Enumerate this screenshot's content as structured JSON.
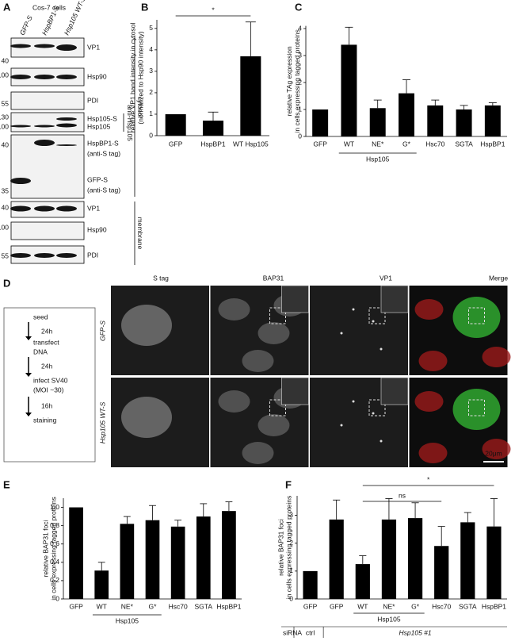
{
  "panel_labels": [
    "A",
    "B",
    "C",
    "D",
    "E",
    "F"
  ],
  "panel_a": {
    "title": "Cos-7 cells",
    "lanes": [
      "GFP-S",
      "HspBP1-S",
      "Hsp105 WT-S"
    ],
    "blots": [
      {
        "markers": [
          40
        ],
        "labels": [
          "VP1"
        ]
      },
      {
        "markers": [
          100
        ],
        "labels": [
          "Hsp90"
        ]
      },
      {
        "markers": [
          55
        ],
        "labels": [
          "PDI"
        ]
      },
      {
        "markers": [
          130,
          100
        ],
        "labels": [
          "Hsp105-S",
          "Hsp105"
        ]
      },
      {
        "markers": [
          40,
          35
        ],
        "labels": [
          "HspBP1-S",
          "(anti-S tag)",
          "GFP-S",
          "(anti-S tag)"
        ]
      },
      {
        "markers": [
          40
        ],
        "labels": [
          "VP1"
        ]
      },
      {
        "markers": [
          100
        ],
        "labels": [
          "Hsp90"
        ]
      },
      {
        "markers": [
          55
        ],
        "labels": [
          "PDI"
        ]
      }
    ],
    "brackets": [
      "anti-Hsp105",
      "cytosol",
      "membrane"
    ]
  },
  "panel_d": {
    "columns": [
      "S tag",
      "BAP31",
      "VP1",
      "Merge"
    ],
    "rows": [
      "GFP-S",
      "Hsp105 WT-S"
    ],
    "scale_bar": "20μm",
    "protocol": [
      "seed",
      "24h",
      "transfect",
      "DNA",
      "24h",
      "infect SV40",
      "(MOI ~30)",
      "16h",
      "staining"
    ]
  },
  "chart_data": [
    {
      "type": "bar",
      "color": "#000000",
      "categories": [
        "GFP",
        "HspBP1",
        "WT Hsp105"
      ],
      "values": [
        1,
        0.7,
        3.7
      ],
      "errors": [
        0,
        0.4,
        1.6
      ],
      "ylim": [
        0,
        5.4
      ],
      "yticks": [
        0,
        1,
        2,
        3,
        4,
        5
      ],
      "ylabel": [
        "relative VP1 band intensity in cytosol",
        "(normalized to Hsp90 intensity)"
      ],
      "annotations": [
        "*"
      ]
    },
    {
      "type": "bar",
      "color": "#000000",
      "categories": [
        "GFP",
        "WT",
        "NE*",
        "G*",
        "Hsc70",
        "SGTA",
        "HspBP1"
      ],
      "values": [
        1,
        3.4,
        1.05,
        1.6,
        1.15,
        1.0,
        1.15
      ],
      "errors": [
        0,
        0.65,
        0.3,
        0.5,
        0.2,
        0.15,
        0.1
      ],
      "ylim": [
        0,
        4.1
      ],
      "yticks": [
        0,
        1,
        2,
        3,
        4
      ],
      "ylabel": [
        "relative TAg expression",
        "in cells expressing tagged proteins"
      ],
      "group_label": "Hsp105"
    },
    {
      "type": "bar",
      "color": "#000000",
      "categories": [
        "GFP",
        "WT",
        "NE*",
        "G*",
        "Hsc70",
        "SGTA",
        "HspBP1"
      ],
      "values": [
        1.0,
        0.31,
        0.82,
        0.86,
        0.79,
        0.9,
        0.96
      ],
      "errors": [
        0,
        0.09,
        0.08,
        0.16,
        0.07,
        0.14,
        0.1
      ],
      "ylim": [
        0,
        1.1
      ],
      "yticks": [
        0,
        0.2,
        0.4,
        0.6,
        0.8,
        {
          "value": 1,
          "label": "1.0"
        }
      ],
      "ylabel": [
        "relative BAP31 foci",
        "in cells expressing tagged proteins"
      ],
      "group_label": "Hsp105"
    },
    {
      "type": "bar",
      "color": "#000000",
      "categories": [
        "GFP",
        "GFP",
        "WT",
        "NE*",
        "G*",
        "Hsc70",
        "SGTA",
        "HspBP1"
      ],
      "values": [
        1.0,
        2.85,
        1.25,
        2.85,
        2.9,
        1.9,
        2.75,
        2.6
      ],
      "errors": [
        0,
        0.7,
        0.3,
        0.75,
        0.55,
        0.7,
        0.35,
        1.0
      ],
      "ylim": [
        0,
        3.7
      ],
      "yticks": [
        0,
        1,
        2,
        3
      ],
      "ylabel": [
        "relative BAP31 foci",
        "in cells expressing tagged proteins"
      ],
      "group_label": "Hsp105",
      "annotations": [
        "ns",
        "*"
      ],
      "row_label": "siRNA",
      "row_values": [
        "ctrl",
        "Hsp105 #1"
      ]
    }
  ]
}
